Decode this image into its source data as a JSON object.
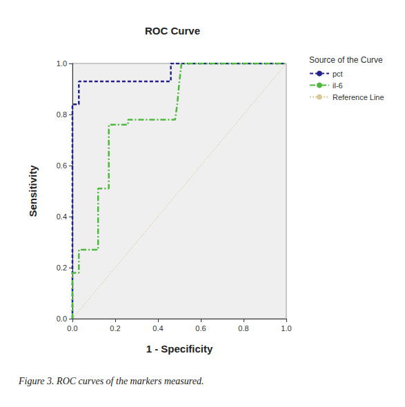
{
  "chart_data": {
    "type": "line",
    "title": "ROC Curve",
    "caption": "Figure 3. ROC curves of the markers measured.",
    "x_label": "1 - Specificity",
    "y_label": "Sensitivity",
    "legend_title": "Source of the Curve",
    "legend": "right",
    "grid": false,
    "xlim": [
      0,
      1
    ],
    "ylim": [
      0,
      1
    ],
    "xticks": [
      {
        "value": 0,
        "label": "0.0"
      },
      {
        "value": 0.2,
        "label": "0.2"
      },
      {
        "value": 0.4,
        "label": "0.4"
      },
      {
        "value": 0.6,
        "label": "0.6"
      },
      {
        "value": 0.8,
        "label": "0.8"
      },
      {
        "value": 1,
        "label": "1.0"
      }
    ],
    "yticks": [
      {
        "value": 0,
        "label": "0.0"
      },
      {
        "value": 0.2,
        "label": "0.2"
      },
      {
        "value": 0.4,
        "label": "0.4"
      },
      {
        "value": 0.6,
        "label": "0.6"
      },
      {
        "value": 0.8,
        "label": "0.8"
      },
      {
        "value": 1,
        "label": "1.0"
      }
    ],
    "series": [
      {
        "name": "pct",
        "color": "#22228a",
        "line_style": "dashed",
        "x": [
          0,
          0,
          0.03,
          0.03,
          0.46,
          0.46,
          1
        ],
        "values": [
          0,
          0.84,
          0.84,
          0.93,
          0.93,
          1,
          1
        ]
      },
      {
        "name": "il-6",
        "color": "#4cb83c",
        "line_style": "dashdot",
        "x": [
          0,
          0,
          0.03,
          0.03,
          0.12,
          0.12,
          0.17,
          0.17,
          0.26,
          0.26,
          0.48,
          0.49,
          0.5,
          0.51,
          1
        ],
        "values": [
          0,
          0.18,
          0.18,
          0.27,
          0.27,
          0.51,
          0.51,
          0.76,
          0.76,
          0.78,
          0.78,
          0.84,
          0.93,
          1,
          1
        ]
      },
      {
        "name": "Reference Line",
        "color": "#d9c99a",
        "line_style": "dotted",
        "x": [
          0,
          1
        ],
        "values": [
          0,
          1
        ]
      }
    ]
  }
}
